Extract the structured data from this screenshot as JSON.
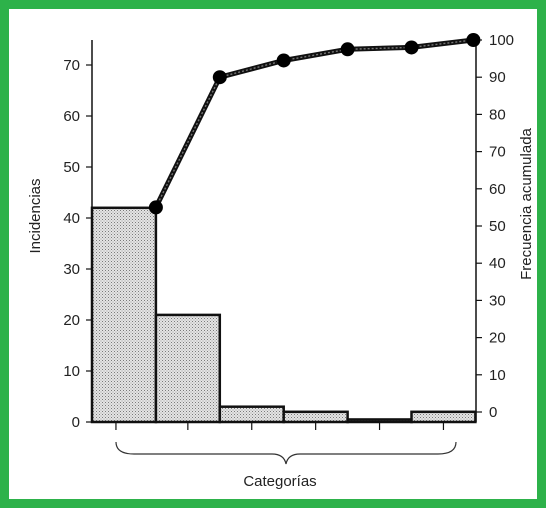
{
  "chart_data": {
    "type": "pareto",
    "categories": [
      "",
      "",
      "",
      "",
      "",
      ""
    ],
    "bar_values": [
      42,
      21,
      3,
      2,
      0.5,
      2
    ],
    "cumulative_percent": [
      55,
      90,
      94.5,
      97.5,
      98,
      100
    ],
    "xlabel": "Categorías",
    "ylabel_left": "Incidencias",
    "ylabel_right": "Frecuencia acumulada",
    "ylim_left": [
      0,
      75
    ],
    "ylim_right": [
      0,
      100
    ],
    "yticks_left": [
      "0",
      "10",
      "20",
      "30",
      "40",
      "50",
      "60",
      "70"
    ],
    "yticks_right": [
      "0",
      "10",
      "20",
      "30",
      "40",
      "50",
      "60",
      "70",
      "80",
      "90",
      "100"
    ],
    "grid": false,
    "colors": {
      "frame": "#2db24a",
      "bar_fill": "#d6d6d6",
      "bar_stroke": "#111111",
      "line": "#111111",
      "marker": "#000000"
    }
  }
}
